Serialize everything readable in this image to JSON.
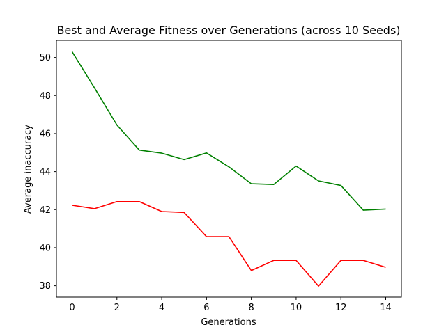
{
  "chart_data": {
    "type": "line",
    "title": "Best and Average Fitness over Generations (across 10 Seeds)",
    "xlabel": "Generations",
    "ylabel": "Average inaccuracy",
    "xlim": [
      -0.7,
      14.7
    ],
    "ylim": [
      37.4,
      50.9
    ],
    "xticks": [
      0,
      2,
      4,
      6,
      8,
      10,
      12,
      14
    ],
    "yticks": [
      38,
      40,
      42,
      44,
      46,
      48,
      50
    ],
    "grid": false,
    "x": [
      0,
      1,
      2,
      3,
      4,
      5,
      6,
      7,
      8,
      9,
      10,
      11,
      12,
      13,
      14
    ],
    "series": [
      {
        "color": "#008000",
        "values": [
          50.3,
          48.4,
          46.45,
          45.13,
          44.97,
          44.63,
          44.98,
          44.25,
          43.36,
          43.32,
          44.29,
          43.51,
          43.27,
          41.97,
          42.03
        ]
      },
      {
        "color": "#ff0000",
        "values": [
          42.23,
          42.05,
          42.42,
          42.42,
          41.9,
          41.85,
          40.58,
          40.58,
          38.8,
          39.33,
          39.33,
          37.98,
          39.33,
          39.33,
          38.97
        ]
      }
    ]
  }
}
